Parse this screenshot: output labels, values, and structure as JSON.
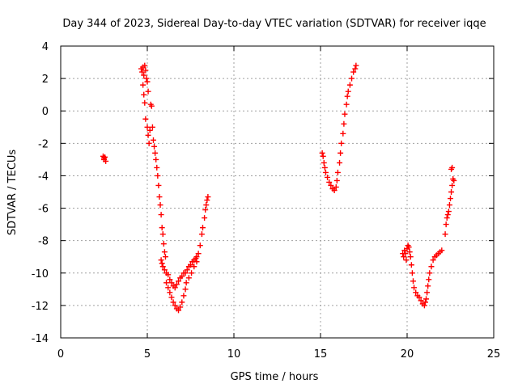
{
  "chart_data": {
    "type": "scatter",
    "title": "Day 344 of 2023, Sidereal Day-to-day VTEC variation (SDTVAR) for receiver iqqe",
    "xlabel": "GPS time / hours",
    "ylabel": "SDTVAR / TECUs",
    "xlim": [
      0,
      25
    ],
    "ylim": [
      -14,
      4
    ],
    "xticks": [
      0,
      5,
      10,
      15,
      20,
      25
    ],
    "yticks": [
      4,
      2,
      0,
      -2,
      -4,
      -6,
      -8,
      -10,
      -12,
      -14
    ],
    "grid": true,
    "marker": "plus",
    "color": "#ff0000",
    "series": [
      {
        "name": "SDTVAR",
        "points": [
          [
            2.45,
            -2.8
          ],
          [
            2.5,
            -2.9
          ],
          [
            2.55,
            -2.85
          ],
          [
            2.6,
            -3.1
          ],
          [
            2.5,
            -3.0
          ],
          [
            4.65,
            2.6
          ],
          [
            4.7,
            2.4
          ],
          [
            4.75,
            2.7
          ],
          [
            4.8,
            2.2
          ],
          [
            4.85,
            2.8
          ],
          [
            4.9,
            2.5
          ],
          [
            4.95,
            2.0
          ],
          [
            4.75,
            1.6
          ],
          [
            4.8,
            1.0
          ],
          [
            4.85,
            0.5
          ],
          [
            4.9,
            -0.5
          ],
          [
            5.0,
            1.8
          ],
          [
            5.05,
            1.2
          ],
          [
            5.0,
            -1.0
          ],
          [
            5.05,
            -1.5
          ],
          [
            5.1,
            -2.0
          ],
          [
            5.15,
            -1.2
          ],
          [
            5.2,
            0.4
          ],
          [
            5.25,
            0.3
          ],
          [
            5.3,
            -1.0
          ],
          [
            5.35,
            -1.8
          ],
          [
            5.4,
            -2.2
          ],
          [
            5.45,
            -2.6
          ],
          [
            5.5,
            -3.0
          ],
          [
            5.55,
            -3.5
          ],
          [
            5.6,
            -4.0
          ],
          [
            5.65,
            -4.6
          ],
          [
            5.7,
            -5.3
          ],
          [
            5.75,
            -5.8
          ],
          [
            5.8,
            -6.4
          ],
          [
            5.85,
            -7.2
          ],
          [
            5.9,
            -7.6
          ],
          [
            5.95,
            -8.2
          ],
          [
            6.0,
            -8.7
          ],
          [
            6.05,
            -9.0
          ],
          [
            5.8,
            -9.2
          ],
          [
            5.85,
            -9.4
          ],
          [
            5.9,
            -9.6
          ],
          [
            6.0,
            -9.8
          ],
          [
            6.1,
            -10.0
          ],
          [
            6.2,
            -10.1
          ],
          [
            6.3,
            -10.4
          ],
          [
            6.4,
            -10.6
          ],
          [
            6.5,
            -10.8
          ],
          [
            6.6,
            -10.9
          ],
          [
            6.7,
            -10.7
          ],
          [
            6.8,
            -10.5
          ],
          [
            6.9,
            -10.3
          ],
          [
            7.0,
            -10.2
          ],
          [
            7.1,
            -10.0
          ],
          [
            7.2,
            -10.0
          ],
          [
            7.3,
            -9.8
          ],
          [
            7.4,
            -9.6
          ],
          [
            7.5,
            -9.5
          ],
          [
            7.6,
            -9.3
          ],
          [
            7.7,
            -9.2
          ],
          [
            7.8,
            -9.1
          ],
          [
            7.85,
            -9.0
          ],
          [
            6.1,
            -10.6
          ],
          [
            6.2,
            -10.9
          ],
          [
            6.3,
            -11.2
          ],
          [
            6.4,
            -11.5
          ],
          [
            6.5,
            -11.8
          ],
          [
            6.6,
            -12.0
          ],
          [
            6.7,
            -12.2
          ],
          [
            6.8,
            -12.3
          ],
          [
            6.9,
            -12.1
          ],
          [
            7.0,
            -11.8
          ],
          [
            7.1,
            -11.4
          ],
          [
            7.2,
            -11.0
          ],
          [
            7.25,
            -10.6
          ],
          [
            7.4,
            -10.3
          ],
          [
            7.55,
            -10.0
          ],
          [
            7.7,
            -9.6
          ],
          [
            7.85,
            -9.3
          ],
          [
            7.95,
            -8.8
          ],
          [
            8.05,
            -8.3
          ],
          [
            8.15,
            -7.6
          ],
          [
            8.2,
            -7.2
          ],
          [
            8.3,
            -6.6
          ],
          [
            8.35,
            -6.1
          ],
          [
            8.4,
            -5.8
          ],
          [
            8.45,
            -5.5
          ],
          [
            8.5,
            -5.3
          ],
          [
            15.1,
            -2.6
          ],
          [
            15.15,
            -2.8
          ],
          [
            15.2,
            -3.2
          ],
          [
            15.25,
            -3.5
          ],
          [
            15.3,
            -3.8
          ],
          [
            15.4,
            -4.1
          ],
          [
            15.5,
            -4.4
          ],
          [
            15.6,
            -4.6
          ],
          [
            15.7,
            -4.8
          ],
          [
            15.8,
            -4.9
          ],
          [
            15.9,
            -4.7
          ],
          [
            15.95,
            -4.3
          ],
          [
            16.0,
            -3.8
          ],
          [
            16.1,
            -3.2
          ],
          [
            16.15,
            -2.6
          ],
          [
            16.2,
            -2.0
          ],
          [
            16.3,
            -1.4
          ],
          [
            16.35,
            -0.8
          ],
          [
            16.4,
            -0.2
          ],
          [
            16.5,
            0.4
          ],
          [
            16.55,
            0.9
          ],
          [
            16.6,
            1.2
          ],
          [
            16.7,
            1.6
          ],
          [
            16.8,
            2.0
          ],
          [
            16.9,
            2.4
          ],
          [
            17.0,
            2.6
          ],
          [
            17.05,
            2.8
          ],
          [
            19.75,
            -8.8
          ],
          [
            19.8,
            -9.0
          ],
          [
            19.85,
            -8.6
          ],
          [
            19.9,
            -8.8
          ],
          [
            19.95,
            -9.2
          ],
          [
            20.0,
            -8.5
          ],
          [
            20.05,
            -8.3
          ],
          [
            20.1,
            -8.4
          ],
          [
            20.15,
            -8.7
          ],
          [
            20.2,
            -9.0
          ],
          [
            20.25,
            -9.5
          ],
          [
            20.3,
            -10.0
          ],
          [
            20.35,
            -10.5
          ],
          [
            20.4,
            -10.9
          ],
          [
            20.5,
            -11.2
          ],
          [
            20.6,
            -11.4
          ],
          [
            20.7,
            -11.5
          ],
          [
            20.8,
            -11.7
          ],
          [
            20.9,
            -11.9
          ],
          [
            21.0,
            -12.0
          ],
          [
            21.05,
            -11.8
          ],
          [
            21.1,
            -11.6
          ],
          [
            21.15,
            -11.2
          ],
          [
            21.2,
            -10.8
          ],
          [
            21.25,
            -10.4
          ],
          [
            21.3,
            -10.0
          ],
          [
            21.4,
            -9.6
          ],
          [
            21.5,
            -9.2
          ],
          [
            21.6,
            -9.0
          ],
          [
            21.7,
            -8.9
          ],
          [
            21.8,
            -8.8
          ],
          [
            21.9,
            -8.7
          ],
          [
            22.0,
            -8.6
          ],
          [
            22.2,
            -7.6
          ],
          [
            22.25,
            -7.0
          ],
          [
            22.3,
            -6.6
          ],
          [
            22.35,
            -6.4
          ],
          [
            22.4,
            -6.2
          ],
          [
            22.45,
            -5.8
          ],
          [
            22.5,
            -5.4
          ],
          [
            22.55,
            -5.0
          ],
          [
            22.6,
            -4.6
          ],
          [
            22.65,
            -4.2
          ],
          [
            22.7,
            -4.3
          ],
          [
            22.55,
            -3.6
          ],
          [
            22.6,
            -3.5
          ]
        ]
      }
    ]
  }
}
